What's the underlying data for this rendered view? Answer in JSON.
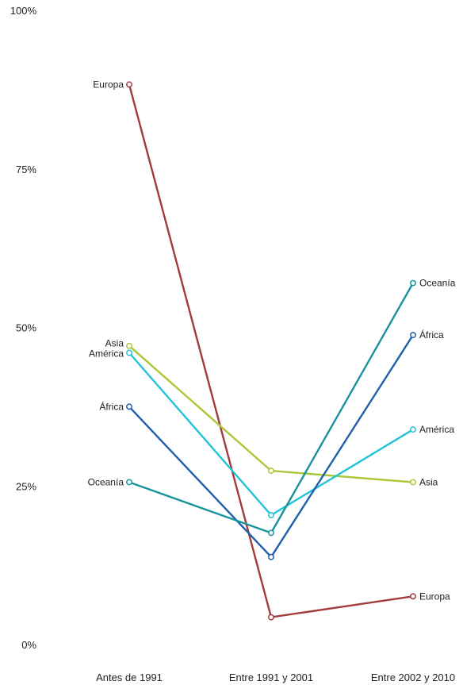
{
  "chart_data": {
    "type": "line",
    "categories": [
      "Antes de 1991",
      "Entre 1991 y 2001",
      "Entre 2002 y 2010"
    ],
    "y_ticks": [
      {
        "value": 0,
        "label": "0%"
      },
      {
        "value": 25,
        "label": "25%"
      },
      {
        "value": 50,
        "label": "50%"
      },
      {
        "value": 75,
        "label": "75%"
      },
      {
        "value": 100,
        "label": "100%"
      }
    ],
    "ylim": [
      0,
      100
    ],
    "grid": false,
    "legend": "none",
    "series": [
      {
        "name": "Europa",
        "values": [
          88.3,
          4.3,
          7.6
        ],
        "color": "#a33b3b"
      },
      {
        "name": "Asia",
        "values": [
          47.1,
          27.4,
          25.6
        ],
        "color": "#a8c83a"
      },
      {
        "name": "América",
        "values": [
          46.0,
          20.4,
          33.9
        ],
        "color": "#21c3d8"
      },
      {
        "name": "África",
        "values": [
          37.5,
          13.8,
          48.8
        ],
        "color": "#1f5fab"
      },
      {
        "name": "Oceanía",
        "values": [
          25.6,
          17.6,
          57.0
        ],
        "color": "#17939b"
      }
    ]
  }
}
